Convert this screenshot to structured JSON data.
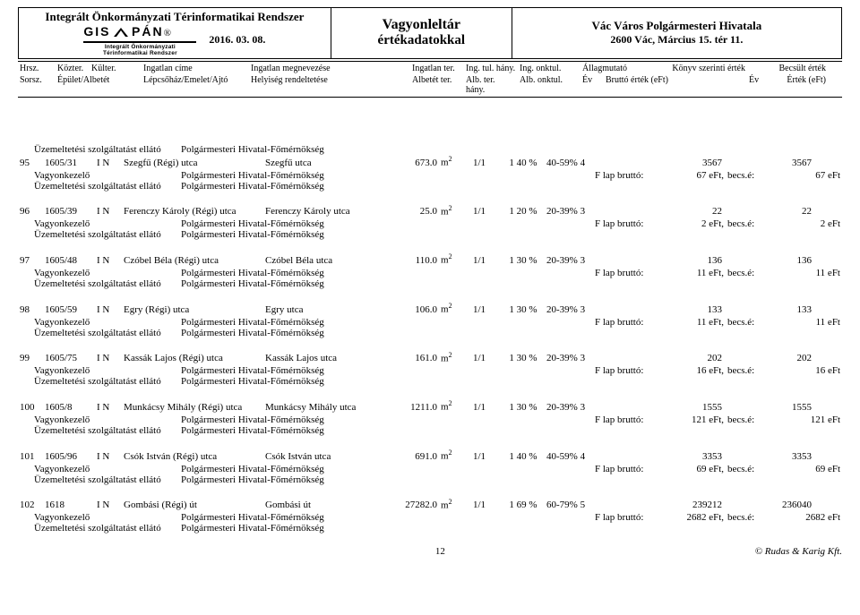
{
  "header": {
    "system_title": "Integrált Önkormányzati Térinformatikai Rendszer",
    "date": "2016. 03. 08.",
    "logo_top": "GIS",
    "logo_pan": "PÁN",
    "logo_reg": "®",
    "logo_bottom": "Integrált Önkormányzati Térinformatikai Rendszer",
    "mid_title": "Vagyonleltár",
    "mid_sub": "értékadatokkal",
    "right_title": "Vác Város Polgármesteri Hivatala",
    "right_addr": "2600 Vác, Március 15. tér 11."
  },
  "col_header": {
    "r1": {
      "c1": "Hrsz.",
      "c2": "Közter.",
      "c3": "Külter.",
      "c4": "Ingatlan címe",
      "c5": "Ingatlan megnevezése",
      "c6": "Ingatlan ter.",
      "c7": "Ing. tul. hány.",
      "c8": "Ing. onktul.",
      "c9": "Állagmutató",
      "c10": "Könyv szerinti érték",
      "c11": "Becsült érték"
    },
    "r2": {
      "c1": "Sorsz.",
      "c2": "Épület/Albetét",
      "c3": "Lépcsőház/Emelet/Ajtó",
      "c5": "Helyiség rendeltetése",
      "c6": "Albetét ter.",
      "c7": "Alb. ter. hány.",
      "c8": "Alb. onktul.",
      "c9": "Év",
      "c10": "Bruttó érték (eFt)",
      "c11a": "Év",
      "c11": "Érték (eFt)"
    }
  },
  "labels": {
    "vagyonkezelo": "Vagyonkezelő",
    "uzemeltetesi": "Üzemeltetési szolgáltatást ellátó",
    "polg_hiv": "Polgármesteri Hivatal-Főmérnökség",
    "flap": "F lap bruttó:",
    "becs": "becs.é:",
    "m2": "m"
  },
  "records": [
    {
      "sorsz": "95",
      "hrsz": "1605/31",
      "in": "I  N",
      "cim": "Szegfű (Régi) utca",
      "meg": "Szegfű utca",
      "ter": "673.0",
      "tul": "1/1",
      "hany": "1  40 %",
      "onktul": "40-59% 4",
      "konyv": "3567",
      "becsult": "3567",
      "flap": "67 eFt,",
      "becs": "67 eFt"
    },
    {
      "sorsz": "96",
      "hrsz": "1605/39",
      "in": "I  N",
      "cim": "Ferenczy Károly (Régi) utca",
      "meg": "Ferenczy Károly utca",
      "ter": "25.0",
      "tul": "1/1",
      "hany": "1  20 %",
      "onktul": "20-39% 3",
      "konyv": "22",
      "becsult": "22",
      "flap": "2 eFt,",
      "becs": "2 eFt"
    },
    {
      "sorsz": "97",
      "hrsz": "1605/48",
      "in": "I  N",
      "cim": "Czóbel Béla (Régi) utca",
      "meg": "Czóbel Béla utca",
      "ter": "110.0",
      "tul": "1/1",
      "hany": "1  30 %",
      "onktul": "20-39% 3",
      "konyv": "136",
      "becsult": "136",
      "flap": "11 eFt,",
      "becs": "11 eFt"
    },
    {
      "sorsz": "98",
      "hrsz": "1605/59",
      "in": "I  N",
      "cim": "Egry (Régi) utca",
      "meg": "Egry utca",
      "ter": "106.0",
      "tul": "1/1",
      "hany": "1  30 %",
      "onktul": "20-39% 3",
      "konyv": "133",
      "becsult": "133",
      "flap": "11 eFt,",
      "becs": "11 eFt"
    },
    {
      "sorsz": "99",
      "hrsz": "1605/75",
      "in": "I  N",
      "cim": "Kassák Lajos (Régi) utca",
      "meg": "Kassák Lajos utca",
      "ter": "161.0",
      "tul": "1/1",
      "hany": "1  30 %",
      "onktul": "20-39% 3",
      "konyv": "202",
      "becsult": "202",
      "flap": "16 eFt,",
      "becs": "16 eFt"
    },
    {
      "sorsz": "100",
      "hrsz": "1605/8",
      "in": "I  N",
      "cim": "Munkácsy Mihály (Régi) utca",
      "meg": "Munkácsy Mihály utca",
      "ter": "1211.0",
      "tul": "1/1",
      "hany": "1  30 %",
      "onktul": "20-39% 3",
      "konyv": "1555",
      "becsult": "1555",
      "flap": "121 eFt,",
      "becs": "121 eFt"
    },
    {
      "sorsz": "101",
      "hrsz": "1605/96",
      "in": "I  N",
      "cim": "Csók István (Régi) utca",
      "meg": "Csók István utca",
      "ter": "691.0",
      "tul": "1/1",
      "hany": "1  40 %",
      "onktul": "40-59% 4",
      "konyv": "3353",
      "becsult": "3353",
      "flap": "69 eFt,",
      "becs": "69 eFt"
    },
    {
      "sorsz": "102",
      "hrsz": "1618",
      "in": "I  N",
      "cim": "Gombási (Régi) út",
      "meg": "Gombási út",
      "ter": "27282.0",
      "tul": "1/1",
      "hany": "1  69 %",
      "onktul": "60-79% 5",
      "konyv": "239212",
      "becsult": "236040",
      "flap": "2682 eFt,",
      "becs": "2682 eFt"
    }
  ],
  "footer": {
    "page": "12",
    "copyright": "© Rudas & Karig Kft."
  }
}
